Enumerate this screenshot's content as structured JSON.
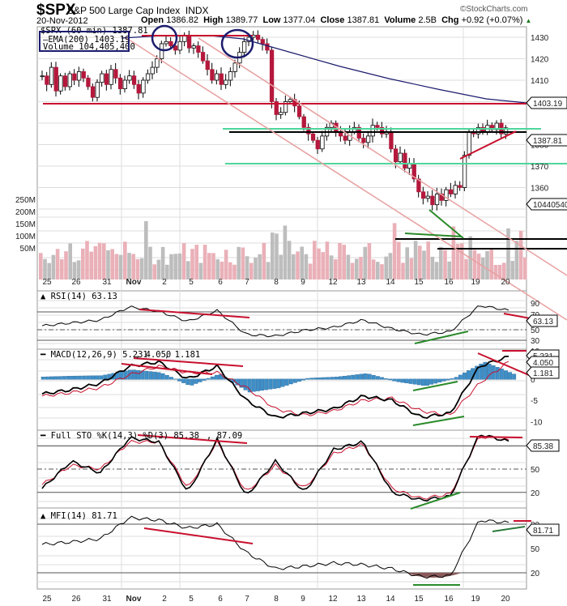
{
  "header": {
    "symbol": "$SPX",
    "name": "S&P 500 Large Cap Index",
    "exchange": "INDX",
    "date": "20-Nov-2012",
    "open_label": "Open",
    "open": "1386.82",
    "high_label": "High",
    "high": "1389.77",
    "low_label": "Low",
    "low": "1377.04",
    "close_label": "Close",
    "close": "1387.81",
    "volume_label": "Volume",
    "volume": "2.5B",
    "chg_label": "Chg",
    "chg": "+0.92 (+0.07%)",
    "copyright": "©StockCharts.com"
  },
  "price_panel": {
    "legend_price": "$SPX (60 min) 1387.81",
    "legend_ema": "EMA(200) 1403.19",
    "legend_volume": "Volume 104,405,400",
    "price_ticks": [
      "1430",
      "1420",
      "1410",
      "1400",
      "1380",
      "1370",
      "1360",
      "1350"
    ],
    "volume_ticks": [
      "250M",
      "200M",
      "150M",
      "100M",
      "50M"
    ],
    "ema_tag": "1403.19",
    "last_price_tag": "1387.81",
    "volume_tag": "104405400"
  },
  "rsi_panel": {
    "title": "RSI(14) 63.13",
    "ticks": [
      "90",
      "70",
      "50",
      "30",
      "10"
    ],
    "tag": "63.13"
  },
  "macd_panel": {
    "title_main": "MACD(12,26,9) 5.231",
    "title_sig": ", 4.050",
    "title_hist": ", 1.181",
    "ticks": [
      "5",
      "0",
      "-5",
      "-10"
    ],
    "tag_macd": "5.231",
    "tag_sig": "4.050",
    "tag_hist": "1.181"
  },
  "sto_panel": {
    "title_main": "Full STO %K(14,3) %D(3) 85.38",
    "title_d": ", 87.09",
    "ticks": [
      "80",
      "50",
      "20"
    ],
    "tag": "85.38"
  },
  "mfi_panel": {
    "title": "MFI(14) 81.71",
    "ticks": [
      "80",
      "50",
      "20"
    ],
    "tag": "81.71"
  },
  "x_axis": {
    "labels": [
      "25",
      "26",
      "31",
      "Nov",
      "2",
      "5",
      "6",
      "7",
      "8",
      "9",
      "12",
      "13",
      "14",
      "15",
      "16",
      "19",
      "20"
    ]
  },
  "colors": {
    "up": "#ffffff",
    "down": "#b5183c",
    "ema": "#1c1c6e",
    "resistance": "#c8102e",
    "support": "#4fd69c",
    "channel": "#e8a0a0",
    "hist": "#3f8fc8",
    "vol_up": "#bdbdbd",
    "vol_down": "#eab0b8"
  },
  "chart_data": [
    {
      "type": "line",
      "title": "$SPX S&P 500 Large Cap Index (60 min) candlestick",
      "x": [
        "25",
        "26",
        "31",
        "Nov",
        "2",
        "5",
        "6",
        "7",
        "8",
        "9",
        "12",
        "13",
        "14",
        "15",
        "16",
        "19",
        "20"
      ],
      "series": [
        {
          "name": "$SPX close (approx)",
          "values": [
            1412,
            1410,
            1412,
            1427,
            1427,
            1414,
            1425,
            1395,
            1392,
            1380,
            1382,
            1385,
            1368,
            1356,
            1360,
            1385,
            1387.81
          ]
        },
        {
          "name": "EMA(200)",
          "values": [
            null,
            null,
            null,
            1430,
            1431,
            1431,
            1430,
            1428,
            1425,
            1421,
            1417,
            1413,
            1410,
            1407,
            1405,
            1404,
            1403.19
          ]
        }
      ],
      "ylim": [
        1345,
        1435
      ],
      "yticks": [
        1360,
        1370,
        1380,
        1400,
        1410,
        1420,
        1430
      ],
      "annotations": [
        "horizontal resistance ~1431",
        "horizontal resistance ~1402",
        "support band ~1391",
        "support band ~1378",
        "descending channel",
        "rising wedge line near 1380-1391",
        "blue circles marking double top on Nov 2 and Nov 7"
      ]
    },
    {
      "type": "bar",
      "title": "Volume",
      "yticks": [
        "50M",
        "100M",
        "150M",
        "200M",
        "250M"
      ],
      "last_value": 104405400
    },
    {
      "type": "line",
      "title": "RSI(14)",
      "x": [
        "25",
        "26",
        "31",
        "Nov",
        "2",
        "5",
        "6",
        "7",
        "8",
        "9",
        "12",
        "13",
        "14",
        "15",
        "16",
        "19",
        "20"
      ],
      "values": [
        42,
        46,
        50,
        68,
        62,
        48,
        63,
        30,
        28,
        36,
        40,
        50,
        38,
        30,
        34,
        70,
        63.13
      ],
      "ylim": [
        10,
        90
      ],
      "yticks": [
        10,
        30,
        50,
        70,
        90
      ]
    },
    {
      "type": "line",
      "title": "MACD(12,26,9)",
      "series": [
        {
          "name": "MACD",
          "values": [
            -3.5,
            -2.5,
            -1,
            3,
            4,
            0,
            3,
            -5,
            -9,
            -8,
            -7,
            -4,
            -5,
            -9,
            -8,
            3,
            5.231
          ]
        },
        {
          "name": "Signal",
          "values": [
            -4,
            -3.2,
            -2,
            1,
            3,
            1.5,
            1.5,
            -2,
            -7,
            -8.5,
            -7.5,
            -5,
            -4.5,
            -7.5,
            -8.5,
            -1,
            4.05
          ]
        },
        {
          "name": "Histogram",
          "values": [
            0.5,
            0.7,
            0.8,
            2.2,
            1.5,
            -1.5,
            1.2,
            -3,
            -2,
            0.2,
            0.5,
            1.3,
            -0.5,
            -1.5,
            0.3,
            4,
            1.181
          ]
        }
      ],
      "ylim": [
        -12,
        7
      ],
      "yticks": [
        -10,
        -5,
        0,
        5
      ]
    },
    {
      "type": "line",
      "title": "Full STO %K(14,3) %D(3)",
      "series": [
        {
          "name": "%K",
          "values": [
            25,
            60,
            45,
            90,
            85,
            20,
            88,
            15,
            60,
            20,
            75,
            85,
            20,
            10,
            15,
            95,
            85.38
          ]
        },
        {
          "name": "%D",
          "values": [
            30,
            55,
            50,
            85,
            85,
            25,
            85,
            20,
            55,
            25,
            70,
            82,
            25,
            12,
            18,
            92,
            87.09
          ]
        }
      ],
      "ylim": [
        0,
        100
      ],
      "yticks": [
        20,
        50,
        80
      ]
    },
    {
      "type": "line",
      "title": "MFI(14)",
      "values": [
        55,
        58,
        62,
        88,
        85,
        75,
        80,
        45,
        25,
        28,
        32,
        30,
        25,
        15,
        16,
        85,
        81.71
      ],
      "ylim": [
        0,
        100
      ],
      "yticks": [
        20,
        50,
        80
      ]
    }
  ]
}
